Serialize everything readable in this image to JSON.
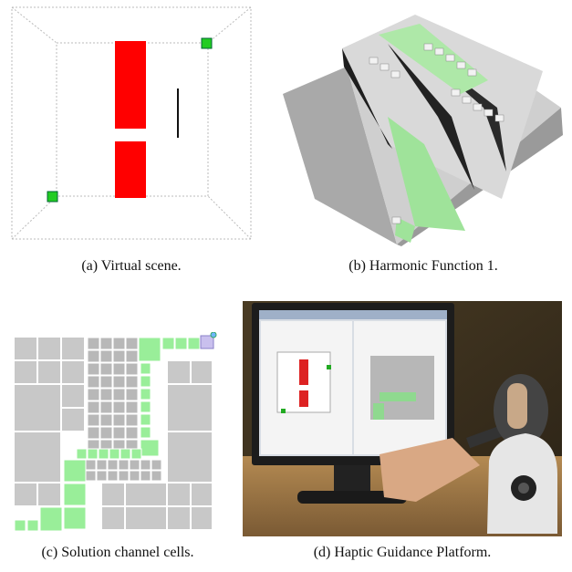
{
  "figure": {
    "panels": [
      {
        "id": "a",
        "caption": "(a) Virtual scene."
      },
      {
        "id": "b",
        "caption": "(b) Harmonic Function 1."
      },
      {
        "id": "c",
        "caption": "(c) Solution channel cells."
      },
      {
        "id": "d",
        "caption": "(d) Haptic Guidance Platform."
      }
    ]
  },
  "colors": {
    "obstacle": "#ff0000",
    "goal_cube": "#22cc22",
    "channel": "#99ee99",
    "cell_gray": "#c8c8c8",
    "dark_block": "#2a2a2a"
  }
}
